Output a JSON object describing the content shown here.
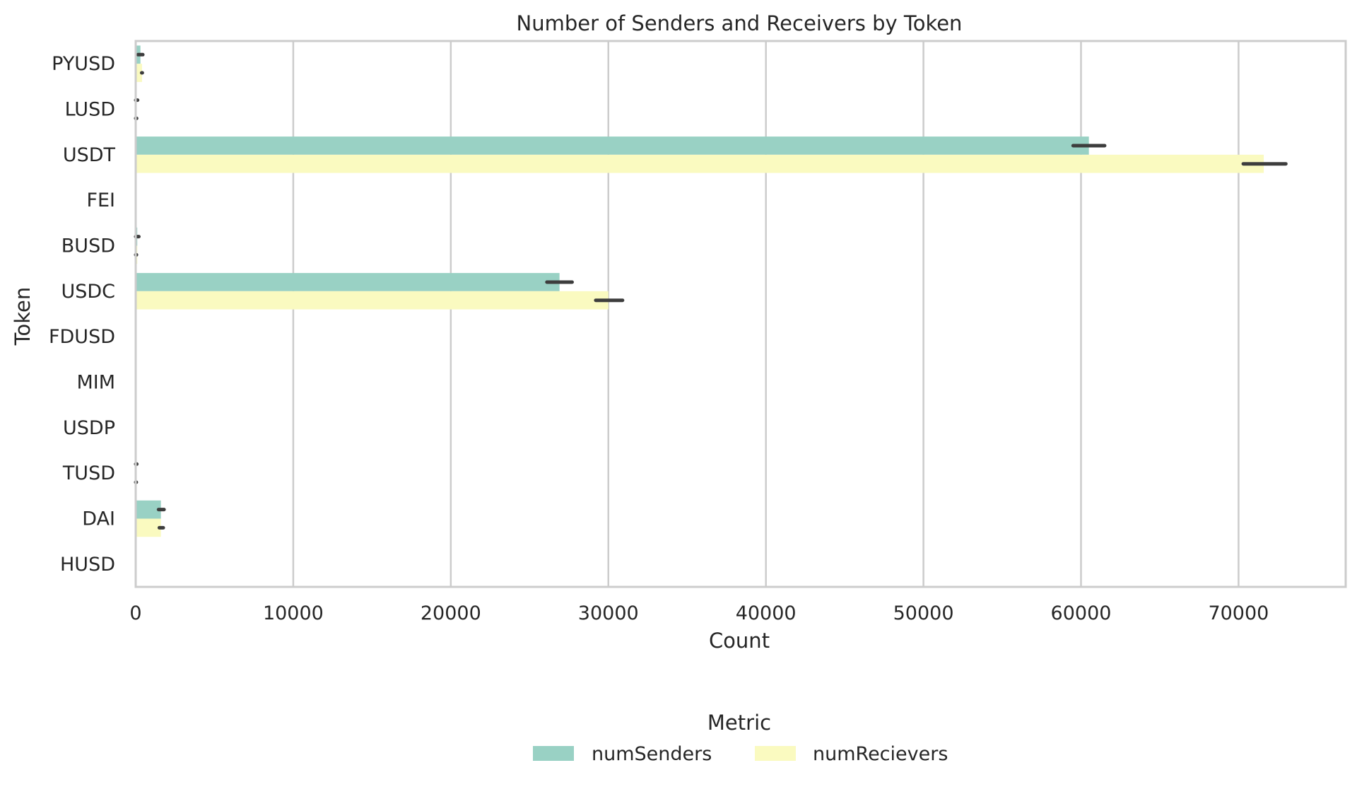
{
  "chart_data": {
    "type": "bar",
    "orientation": "horizontal",
    "title": "Number of Senders and Receivers by Token",
    "xlabel": "Count",
    "ylabel": "Token",
    "xlim": [
      0,
      76800
    ],
    "xticks": [
      0,
      10000,
      20000,
      30000,
      40000,
      50000,
      60000,
      70000
    ],
    "grid": "vertical",
    "categories": [
      "PYUSD",
      "LUSD",
      "USDT",
      "FEI",
      "BUSD",
      "USDC",
      "FDUSD",
      "MIM",
      "USDP",
      "TUSD",
      "DAI",
      "HUSD"
    ],
    "series": [
      {
        "name": "numSenders",
        "color": "#99d1c4",
        "values": [
          300,
          50,
          60500,
          0,
          100,
          26900,
          0,
          0,
          0,
          30,
          1600,
          0
        ],
        "error": [
          [
            150,
            450
          ],
          [
            0,
            120
          ],
          [
            59500,
            61500
          ],
          [
            0,
            0
          ],
          [
            0,
            200
          ],
          [
            26100,
            27700
          ],
          [
            0,
            0
          ],
          [
            0,
            0
          ],
          [
            0,
            0
          ],
          [
            0,
            70
          ],
          [
            1450,
            1800
          ],
          [
            0,
            0
          ]
        ]
      },
      {
        "name": "numRecievers",
        "color": "#fafac0",
        "values": [
          400,
          50,
          71600,
          0,
          100,
          30000,
          0,
          0,
          0,
          30,
          1600,
          0
        ],
        "error": [
          [
            380,
            420
          ],
          [
            0,
            60
          ],
          [
            70300,
            73000
          ],
          [
            0,
            0
          ],
          [
            0,
            50
          ],
          [
            29200,
            30900
          ],
          [
            0,
            0
          ],
          [
            0,
            0
          ],
          [
            0,
            0
          ],
          [
            0,
            40
          ],
          [
            1500,
            1750
          ],
          [
            0,
            0
          ]
        ]
      }
    ],
    "legend": {
      "title": "Metric",
      "placement": "bottom-center"
    }
  }
}
